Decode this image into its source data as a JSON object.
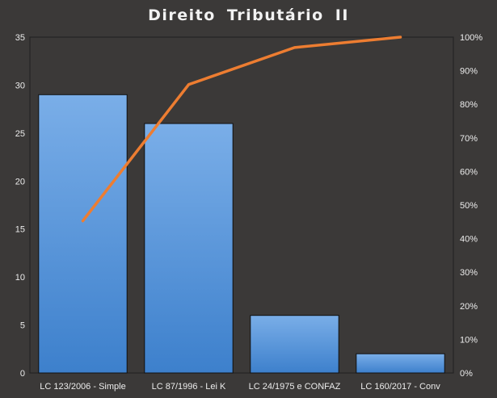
{
  "chart_data": {
    "type": "bar",
    "title": "Direito  Tributário  II",
    "categories": [
      "LC 123/2006 - Simple",
      "LC 87/1996 - Lei K",
      "LC 24/1975 e CONFAZ",
      "LC 160/2017 - Conv"
    ],
    "series": [
      {
        "type": "bar",
        "axis": "left",
        "values": [
          29,
          26,
          6,
          2
        ]
      },
      {
        "type": "line",
        "axis": "right",
        "values": [
          45.3,
          85.9,
          96.9,
          100
        ]
      }
    ],
    "y_left": {
      "ylim": [
        0,
        35
      ],
      "ticks": [
        "0",
        "5",
        "10",
        "15",
        "20",
        "25",
        "30",
        "35"
      ]
    },
    "y_right": {
      "ylim": [
        0,
        100
      ],
      "ticks": [
        "0%",
        "10%",
        "20%",
        "30%",
        "40%",
        "50%",
        "60%",
        "70%",
        "80%",
        "90%",
        "100%"
      ]
    },
    "grid": false,
    "legend": "none",
    "colors": {
      "background": "#3b3938",
      "plot_border": "#1f1f1f",
      "bar_top": "#7aaee8",
      "bar_bottom": "#3d80cc",
      "bar_border": "#101010",
      "line": "#ed7d31",
      "text": "#ececec",
      "title": "#f2f2f2"
    }
  }
}
